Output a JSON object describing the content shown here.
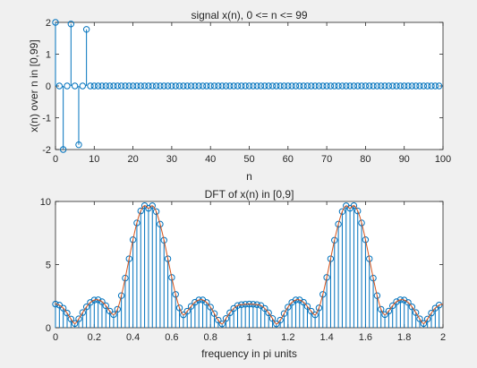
{
  "figure": {
    "background": "#f0f0f0",
    "axes_background": "#ffffff"
  },
  "chart_data": [
    {
      "type": "stem",
      "title": "signal x(n), 0 <= n <= 99",
      "xlabel": "n",
      "ylabel": "x(n) over n in [0,99]",
      "xlim": [
        0,
        100
      ],
      "ylim": [
        -2,
        2
      ],
      "xticks": [
        0,
        10,
        20,
        30,
        40,
        50,
        60,
        70,
        80,
        90,
        100
      ],
      "yticks": [
        -2,
        -1,
        0,
        1,
        2
      ],
      "grid": false,
      "color": "#0072bd",
      "x": [
        0,
        1,
        2,
        3,
        4,
        5,
        6,
        7,
        8,
        9,
        10,
        11,
        12,
        13,
        14,
        15,
        16,
        17,
        18,
        19,
        20,
        21,
        22,
        23,
        24,
        25,
        26,
        27,
        28,
        29,
        30,
        31,
        32,
        33,
        34,
        35,
        36,
        37,
        38,
        39,
        40,
        41,
        42,
        43,
        44,
        45,
        46,
        47,
        48,
        49,
        50,
        51,
        52,
        53,
        54,
        55,
        56,
        57,
        58,
        59,
        60,
        61,
        62,
        63,
        64,
        65,
        66,
        67,
        68,
        69,
        70,
        71,
        72,
        73,
        74,
        75,
        76,
        77,
        78,
        79,
        80,
        81,
        82,
        83,
        84,
        85,
        86,
        87,
        88,
        89,
        90,
        91,
        92,
        93,
        94,
        95,
        96,
        97,
        98,
        99
      ],
      "y": [
        2,
        0,
        -2,
        0,
        1.95,
        0,
        -1.85,
        0,
        1.78,
        0,
        0,
        0,
        0,
        0,
        0,
        0,
        0,
        0,
        0,
        0,
        0,
        0,
        0,
        0,
        0,
        0,
        0,
        0,
        0,
        0,
        0,
        0,
        0,
        0,
        0,
        0,
        0,
        0,
        0,
        0,
        0,
        0,
        0,
        0,
        0,
        0,
        0,
        0,
        0,
        0,
        0,
        0,
        0,
        0,
        0,
        0,
        0,
        0,
        0,
        0,
        0,
        0,
        0,
        0,
        0,
        0,
        0,
        0,
        0,
        0,
        0,
        0,
        0,
        0,
        0,
        0,
        0,
        0,
        0,
        0,
        0,
        0,
        0,
        0,
        0,
        0,
        0,
        0,
        0,
        0,
        0,
        0,
        0,
        0,
        0,
        0,
        0,
        0,
        0,
        0
      ]
    },
    {
      "type": "stem+line",
      "title": "DFT of x(n) in [0,9]",
      "xlabel": "frequency in pi units",
      "ylabel": "",
      "xlim": [
        0,
        2
      ],
      "ylim": [
        0,
        10
      ],
      "xticks": [
        0,
        0.2,
        0.4,
        0.6,
        0.8,
        1,
        1.2,
        1.4,
        1.6,
        1.8,
        2
      ],
      "xticklabels": [
        "0",
        "0.2",
        "0.4",
        "0.6",
        "0.8",
        "1",
        "1.2",
        "1.4",
        "1.6",
        "1.8",
        "2"
      ],
      "yticks": [
        0,
        5,
        10
      ],
      "grid": false,
      "stem_color": "#0072bd",
      "line_color": "#d95319",
      "x": [
        0,
        0.02,
        0.04,
        0.06,
        0.08,
        0.1,
        0.12,
        0.14,
        0.16,
        0.18,
        0.2,
        0.22,
        0.24,
        0.26,
        0.28,
        0.3,
        0.32,
        0.34,
        0.36,
        0.38,
        0.4,
        0.42,
        0.44,
        0.46,
        0.48,
        0.5,
        0.52,
        0.54,
        0.56,
        0.58,
        0.6,
        0.62,
        0.64,
        0.66,
        0.68,
        0.7,
        0.72,
        0.74,
        0.76,
        0.78,
        0.8,
        0.82,
        0.84,
        0.86,
        0.88,
        0.9,
        0.92,
        0.94,
        0.96,
        0.98,
        1,
        1.02,
        1.04,
        1.06,
        1.08,
        1.1,
        1.12,
        1.14,
        1.16,
        1.18,
        1.2,
        1.22,
        1.24,
        1.26,
        1.28,
        1.3,
        1.32,
        1.34,
        1.36,
        1.38,
        1.4,
        1.42,
        1.44,
        1.46,
        1.48,
        1.5,
        1.52,
        1.54,
        1.56,
        1.58,
        1.6,
        1.62,
        1.64,
        1.66,
        1.68,
        1.7,
        1.72,
        1.74,
        1.76,
        1.78,
        1.8,
        1.82,
        1.84,
        1.86,
        1.88,
        1.9,
        1.92,
        1.94,
        1.96,
        1.98
      ],
      "magnitude": [
        1.87,
        1.79,
        1.55,
        1.16,
        0.69,
        0.33,
        0.7,
        1.2,
        1.65,
        2,
        2.19,
        2.21,
        2.06,
        1.74,
        1.32,
        1.04,
        1.46,
        2.54,
        3.93,
        5.46,
        6.97,
        8.3,
        9.25,
        9.67,
        9.46,
        9.66,
        9.2,
        8.2,
        6.93,
        5.46,
        3.98,
        2.64,
        1.57,
        1.02,
        1.31,
        1.69,
        2.02,
        2.2,
        2.2,
        2,
        1.63,
        1.12,
        0.6,
        0.3,
        0.73,
        1.18,
        1.53,
        1.76,
        1.83,
        1.86,
        1.87,
        1.86,
        1.83,
        1.76,
        1.53,
        1.18,
        0.73,
        0.3,
        0.6,
        1.12,
        1.63,
        2,
        2.2,
        2.2,
        2.02,
        1.69,
        1.31,
        1.02,
        1.57,
        2.64,
        3.98,
        5.46,
        6.93,
        8.2,
        9.2,
        9.66,
        9.46,
        9.67,
        9.25,
        8.3,
        6.97,
        5.46,
        3.93,
        2.54,
        1.46,
        1.04,
        1.32,
        1.74,
        2.06,
        2.21,
        2.19,
        2,
        1.65,
        1.2,
        0.7,
        0.33,
        0.69,
        1.16,
        1.55,
        1.79
      ]
    }
  ]
}
